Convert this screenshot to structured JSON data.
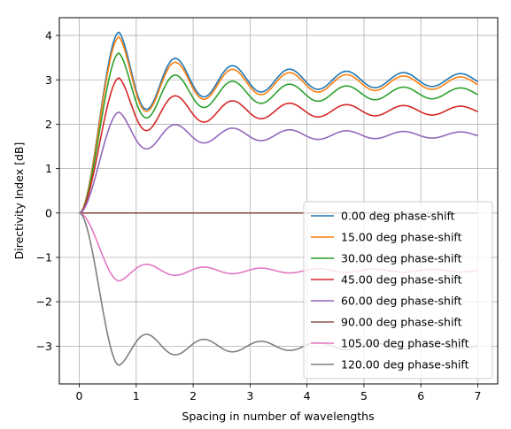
{
  "chart_data": {
    "type": "line",
    "xlabel": "Spacing in number of wavelengths",
    "ylabel": "Directivity Index [dB]",
    "xlim": [
      -0.35,
      7.35
    ],
    "ylim": [
      -3.85,
      4.4
    ],
    "xticks": [
      0,
      1,
      2,
      3,
      4,
      5,
      6,
      7
    ],
    "yticks": [
      -3,
      -2,
      -1,
      0,
      1,
      2,
      3,
      4
    ],
    "grid": true,
    "legend_position": "lower-right",
    "x_range": [
      0,
      7
    ],
    "series": [
      {
        "name": "0.00 deg phase-shift",
        "color": "#1f77b4",
        "peak_x": 0.7,
        "peak": 4.07,
        "asymptote": 3.0
      },
      {
        "name": "15.00 deg phase-shift",
        "color": "#ff7f0e",
        "peak_x": 0.7,
        "peak": 3.96,
        "asymptote": 2.93
      },
      {
        "name": "30.00 deg phase-shift",
        "color": "#2ca02c",
        "peak_x": 0.7,
        "peak": 3.6,
        "asymptote": 2.7
      },
      {
        "name": "45.00 deg phase-shift",
        "color": "#d62728",
        "peak_x": 0.7,
        "peak": 3.04,
        "asymptote": 2.31
      },
      {
        "name": "60.00 deg phase-shift",
        "color": "#9467bd",
        "peak_x": 0.7,
        "peak": 2.27,
        "asymptote": 1.76
      },
      {
        "name": "90.00 deg phase-shift",
        "color": "#8c564b",
        "peak_x": 0.7,
        "peak": 0.0,
        "asymptote": 0.0
      },
      {
        "name": "105.00 deg phase-shift",
        "color": "#e377c2",
        "peak_x": 0.7,
        "peak": -1.53,
        "asymptote": -1.3
      },
      {
        "name": "120.00 deg phase-shift",
        "color": "#7f7f7f",
        "peak_x": 0.7,
        "peak": -3.43,
        "asymptote": -3.0
      }
    ]
  }
}
